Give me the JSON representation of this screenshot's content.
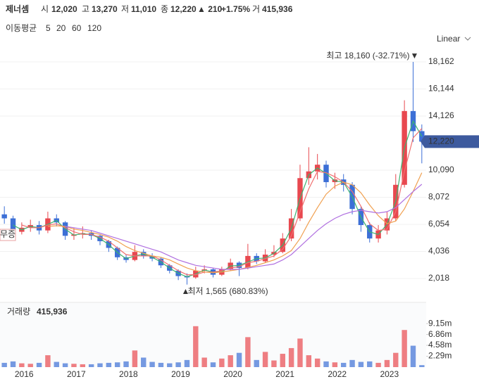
{
  "header": {
    "name": "제너셈",
    "open_label": "시",
    "open": "12,020",
    "high_label": "고",
    "high": "13,270",
    "low_label": "저",
    "low": "11,010",
    "close_label": "종",
    "close": "12,220",
    "change": "▲ 210",
    "change_pct": "+1.75%",
    "volume_label": "거",
    "volume": "415,936"
  },
  "chart_data": {
    "type": "candlestick",
    "ma_legend_label": "이동평균",
    "scale_label": "Linear",
    "event_label": "무증",
    "high_annotation": "최고 18,160 (-32.71%)",
    "low_annotation": "최저 1,565 (680.83%)",
    "last_price": {
      "value": 12220,
      "label": "12,220"
    },
    "up_color": "#e8484f",
    "down_color": "#3c6fd6",
    "categories": [
      null,
      null,
      "2016",
      null,
      null,
      null,
      null,
      null,
      "2017",
      null,
      null,
      null,
      null,
      null,
      "2018",
      null,
      null,
      null,
      null,
      null,
      "2019",
      null,
      null,
      null,
      null,
      null,
      "2020",
      null,
      null,
      null,
      null,
      null,
      "2021",
      null,
      null,
      null,
      null,
      null,
      "2022",
      null,
      null,
      null,
      null,
      null,
      "2023",
      null,
      null,
      null,
      null
    ],
    "ohlc": {
      "open": [
        6800,
        6500,
        5500,
        5800,
        6000,
        5600,
        6500,
        6200,
        5200,
        5300,
        5400,
        5200,
        4800,
        4300,
        3600,
        3400,
        4000,
        3700,
        3500,
        3000,
        2600,
        2200,
        2100,
        2600,
        2700,
        2300,
        2700,
        3200,
        2800,
        3700,
        3300,
        3800,
        4000,
        5000,
        6500,
        9500,
        10000,
        10500,
        9200,
        9400,
        9000,
        7200,
        6000,
        5000,
        5600,
        6500,
        9000,
        14500,
        13000
      ],
      "high": [
        7400,
        6700,
        6200,
        6400,
        6300,
        7000,
        6800,
        6300,
        5800,
        5900,
        5600,
        5300,
        4900,
        4400,
        3800,
        4500,
        4200,
        3900,
        3600,
        3100,
        2700,
        2400,
        2900,
        3000,
        2800,
        2900,
        3500,
        3300,
        4600,
        3900,
        4200,
        4500,
        5400,
        7200,
        10500,
        11800,
        11300,
        10800,
        9900,
        9800,
        9200,
        7400,
        6200,
        6000,
        7000,
        9800,
        15300,
        18160,
        13500
      ],
      "low": [
        6100,
        5100,
        5300,
        5500,
        5300,
        5400,
        5900,
        4900,
        4900,
        5000,
        4900,
        4500,
        4000,
        3400,
        3200,
        3300,
        3500,
        3300,
        2800,
        2400,
        1900,
        1565,
        2000,
        2400,
        2100,
        2200,
        2600,
        2200,
        2700,
        3100,
        3200,
        3600,
        3900,
        4800,
        6300,
        9000,
        9400,
        8800,
        8700,
        8500,
        6800,
        5500,
        4700,
        4700,
        5300,
        6300,
        8800,
        12200,
        10600
      ],
      "close": [
        6500,
        5500,
        5800,
        6000,
        5600,
        6500,
        6200,
        5200,
        5300,
        5400,
        5200,
        4800,
        4300,
        3600,
        3400,
        4000,
        3700,
        3500,
        3000,
        2600,
        2200,
        2100,
        2600,
        2700,
        2300,
        2700,
        3200,
        2800,
        3700,
        3300,
        3800,
        4000,
        5000,
        6500,
        9500,
        10000,
        10500,
        9200,
        9400,
        9000,
        7200,
        6000,
        5000,
        5600,
        6500,
        9000,
        14500,
        13000,
        12220
      ]
    },
    "series": [
      {
        "name": "5",
        "color": "#3cb371",
        "values": [
          null,
          6000,
          5650,
          5900,
          5800,
          6050,
          6350,
          5700,
          5250,
          5350,
          5300,
          5000,
          4550,
          3950,
          3500,
          3700,
          3850,
          3600,
          3250,
          2800,
          2400,
          2150,
          2350,
          2650,
          2500,
          2500,
          2950,
          3000,
          3250,
          3500,
          3550,
          3900,
          4500,
          5750,
          8000,
          9750,
          10250,
          9850,
          9300,
          9200,
          8100,
          6600,
          5500,
          5300,
          6050,
          7750,
          11750,
          13750,
          12600
        ]
      },
      {
        "name": "20",
        "color": "#f07070",
        "values": [
          null,
          null,
          6000,
          5800,
          5800,
          6000,
          6100,
          5800,
          5500,
          5300,
          5300,
          5100,
          4800,
          4300,
          3800,
          3700,
          3700,
          3700,
          3400,
          3000,
          2600,
          2300,
          2300,
          2500,
          2500,
          2600,
          2800,
          2900,
          3200,
          3300,
          3500,
          3700,
          4200,
          5200,
          7000,
          8700,
          10000,
          9900,
          9600,
          9200,
          8500,
          7400,
          6100,
          5600,
          5700,
          7000,
          10000,
          12500,
          13200
        ]
      },
      {
        "name": "60",
        "color": "#f0a050",
        "values": [
          null,
          null,
          null,
          null,
          null,
          5900,
          5950,
          5900,
          5700,
          5600,
          5450,
          5300,
          5100,
          4800,
          4400,
          4100,
          3900,
          3700,
          3600,
          3400,
          3100,
          2800,
          2600,
          2500,
          2450,
          2500,
          2600,
          2700,
          2850,
          3000,
          3200,
          3400,
          3700,
          4100,
          5000,
          6200,
          7300,
          8300,
          8900,
          9200,
          9000,
          8400,
          7500,
          6700,
          6100,
          6300,
          7200,
          8500,
          9900
        ]
      },
      {
        "name": "120",
        "color": "#b070e0",
        "values": [
          null,
          null,
          null,
          null,
          null,
          null,
          null,
          5900,
          5800,
          5700,
          5600,
          5400,
          5200,
          5000,
          4800,
          4600,
          4400,
          4200,
          4000,
          3700,
          3400,
          3200,
          3000,
          2900,
          2800,
          2700,
          2700,
          2700,
          2800,
          2900,
          3000,
          3100,
          3400,
          3800,
          4400,
          5000,
          5600,
          6100,
          6500,
          6800,
          7000,
          7100,
          7000,
          6900,
          7000,
          7300,
          7900,
          8500,
          9040
        ]
      }
    ],
    "ylim": [
      341,
      19105
    ],
    "yticks": [
      {
        "value": 2018,
        "label": "2,018"
      },
      {
        "value": 4036,
        "label": "4,036"
      },
      {
        "value": 6054,
        "label": "6,054"
      },
      {
        "value": 8072,
        "label": "8,072"
      },
      {
        "value": 10090,
        "label": "10,090"
      },
      {
        "value": 14126,
        "label": "14,126"
      },
      {
        "value": 16144,
        "label": "16,144"
      },
      {
        "value": 18162,
        "label": "18,162"
      }
    ],
    "grid": true,
    "volume": {
      "title": "거래량",
      "title_value": "415,936",
      "values": [
        900000,
        1200000,
        800000,
        700000,
        900000,
        2500000,
        1100000,
        800000,
        700000,
        600000,
        600000,
        800000,
        900000,
        1000000,
        1200000,
        3500000,
        2000000,
        1100000,
        900000,
        800000,
        1000000,
        1500000,
        8600000,
        2000000,
        1000000,
        1800000,
        2500000,
        3000000,
        6300000,
        1500000,
        3200000,
        1400000,
        2800000,
        4000000,
        6000000,
        2500000,
        1800000,
        1200000,
        1000000,
        900000,
        1500000,
        1100000,
        1200000,
        900000,
        1500000,
        3000000,
        7800000,
        4500000,
        415936
      ],
      "ylim": [
        0,
        13300000
      ],
      "yticks": [
        {
          "value": 2290000,
          "label": "2.29m"
        },
        {
          "value": 4580000,
          "label": "4.58m"
        },
        {
          "value": 6860000,
          "label": "6.86m"
        },
        {
          "value": 9150000,
          "label": "9.15m"
        }
      ]
    }
  }
}
